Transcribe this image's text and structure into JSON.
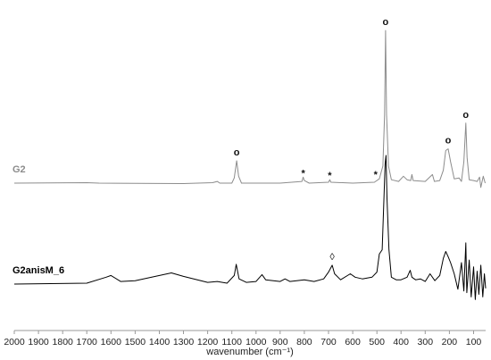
{
  "chart_data": {
    "type": "line",
    "title": "",
    "xlabel": "wavenumber (cm⁻¹)",
    "ylabel": "",
    "x_reversed": true,
    "xlim": [
      2000,
      50
    ],
    "x_ticks": [
      "2000",
      "1900",
      "1800",
      "1700",
      "1600",
      "1500",
      "1400",
      "1300",
      "1200",
      "1100",
      "1000",
      "900",
      "800",
      "700",
      "600",
      "500",
      "400",
      "300",
      "200",
      "100"
    ],
    "grid": false,
    "legend": "none",
    "series": [
      {
        "name": "G2",
        "color": "#8c8c8c",
        "baseline": 0,
        "points": [
          [
            2000,
            0
          ],
          [
            1700,
            0.5
          ],
          [
            1650,
            0
          ],
          [
            1300,
            -0.5
          ],
          [
            1180,
            0.5
          ],
          [
            1160,
            2
          ],
          [
            1150,
            0
          ],
          [
            1100,
            0
          ],
          [
            1090,
            6
          ],
          [
            1080,
            26
          ],
          [
            1072,
            8
          ],
          [
            1060,
            0
          ],
          [
            900,
            0
          ],
          [
            810,
            2
          ],
          [
            805,
            7
          ],
          [
            800,
            3
          ],
          [
            780,
            0
          ],
          [
            700,
            1
          ],
          [
            695,
            4
          ],
          [
            690,
            1
          ],
          [
            600,
            0
          ],
          [
            510,
            1
          ],
          [
            490,
            5
          ],
          [
            475,
            20
          ],
          [
            468,
            80
          ],
          [
            464,
            178
          ],
          [
            460,
            80
          ],
          [
            452,
            20
          ],
          [
            440,
            4
          ],
          [
            410,
            2
          ],
          [
            390,
            8
          ],
          [
            375,
            4
          ],
          [
            360,
            3
          ],
          [
            355,
            10
          ],
          [
            350,
            3
          ],
          [
            300,
            2
          ],
          [
            270,
            10
          ],
          [
            262,
            2
          ],
          [
            240,
            3
          ],
          [
            225,
            15
          ],
          [
            215,
            38
          ],
          [
            205,
            40
          ],
          [
            195,
            25
          ],
          [
            180,
            5
          ],
          [
            160,
            6
          ],
          [
            150,
            2
          ],
          [
            140,
            25
          ],
          [
            132,
            70
          ],
          [
            127,
            30
          ],
          [
            118,
            4
          ],
          [
            100,
            3
          ],
          [
            85,
            2
          ],
          [
            75,
            7
          ],
          [
            70,
            -5
          ],
          [
            60,
            8
          ],
          [
            52,
            0
          ]
        ]
      },
      {
        "name": "G2anisM_6",
        "color": "#000000",
        "baseline": 0,
        "points": [
          [
            2000,
            0
          ],
          [
            1700,
            1
          ],
          [
            1620,
            8
          ],
          [
            1600,
            10
          ],
          [
            1560,
            3
          ],
          [
            1500,
            4
          ],
          [
            1350,
            13
          ],
          [
            1300,
            9
          ],
          [
            1200,
            2
          ],
          [
            1160,
            3
          ],
          [
            1120,
            1
          ],
          [
            1090,
            10
          ],
          [
            1082,
            23
          ],
          [
            1070,
            6
          ],
          [
            1040,
            2
          ],
          [
            1000,
            3
          ],
          [
            975,
            11
          ],
          [
            960,
            5
          ],
          [
            900,
            3
          ],
          [
            880,
            6
          ],
          [
            860,
            3
          ],
          [
            800,
            5
          ],
          [
            760,
            3
          ],
          [
            720,
            6
          ],
          [
            700,
            14
          ],
          [
            685,
            22
          ],
          [
            675,
            12
          ],
          [
            650,
            5
          ],
          [
            610,
            12
          ],
          [
            590,
            8
          ],
          [
            560,
            6
          ],
          [
            520,
            8
          ],
          [
            500,
            14
          ],
          [
            490,
            35
          ],
          [
            478,
            40
          ],
          [
            466,
            140
          ],
          [
            462,
            150
          ],
          [
            458,
            100
          ],
          [
            450,
            40
          ],
          [
            440,
            8
          ],
          [
            420,
            5
          ],
          [
            400,
            5
          ],
          [
            375,
            8
          ],
          [
            362,
            16
          ],
          [
            355,
            8
          ],
          [
            340,
            5
          ],
          [
            320,
            6
          ],
          [
            300,
            3
          ],
          [
            280,
            12
          ],
          [
            260,
            4
          ],
          [
            240,
            10
          ],
          [
            225,
            30
          ],
          [
            215,
            38
          ],
          [
            205,
            32
          ],
          [
            195,
            25
          ],
          [
            180,
            12
          ],
          [
            165,
            -6
          ],
          [
            150,
            25
          ],
          [
            140,
            -8
          ],
          [
            132,
            48
          ],
          [
            128,
            -10
          ],
          [
            118,
            28
          ],
          [
            110,
            -15
          ],
          [
            100,
            20
          ],
          [
            93,
            -18
          ],
          [
            85,
            15
          ],
          [
            78,
            -12
          ],
          [
            70,
            22
          ],
          [
            62,
            -15
          ],
          [
            55,
            12
          ],
          [
            50,
            -5
          ]
        ]
      }
    ],
    "series_labels": [
      {
        "text": "G2",
        "series": 0
      },
      {
        "text": "G2anisM_6",
        "series": 1
      }
    ],
    "annotations": [
      {
        "symbol": "o",
        "x": 464,
        "series": 0,
        "y": 178
      },
      {
        "symbol": "o",
        "x": 1080,
        "series": 0,
        "y": 26
      },
      {
        "symbol": "o",
        "x": 205,
        "series": 0,
        "y": 40
      },
      {
        "symbol": "o",
        "x": 132,
        "series": 0,
        "y": 70
      },
      {
        "symbol": "*",
        "x": 805,
        "series": 0,
        "y": 7
      },
      {
        "symbol": "*",
        "x": 695,
        "series": 0,
        "y": 4
      },
      {
        "symbol": "*",
        "x": 505,
        "series": 0,
        "y": 5
      },
      {
        "symbol": "◊",
        "x": 685,
        "series": 1,
        "y": 22
      }
    ]
  }
}
